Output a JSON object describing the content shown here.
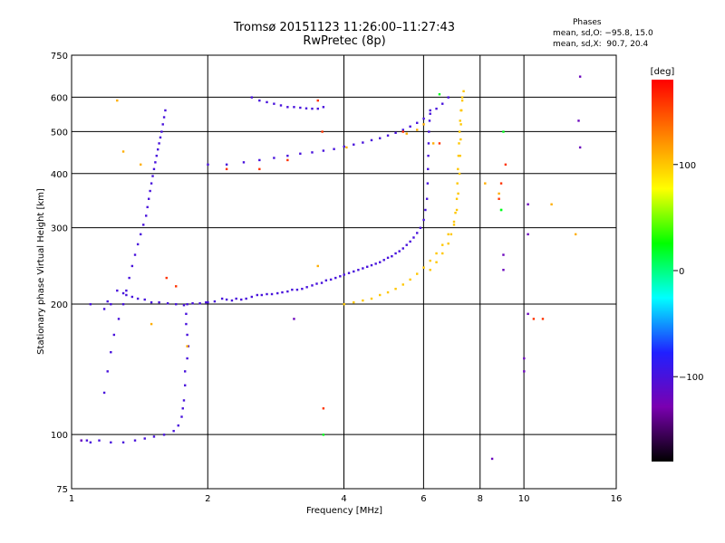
{
  "header": {
    "title": "Tromsø 20151123 11:26:00–11:27:43",
    "subtitle": "RwPretec (8p)"
  },
  "stats": {
    "heading": "Phases",
    "line_o": "mean, sd,O: −95.8, 15.0",
    "line_x": "mean, sd,X:  90.7, 20.4"
  },
  "colorbar": {
    "label": "[deg]",
    "range": [
      -180,
      180
    ],
    "ticks": [
      {
        "value": 100,
        "label": "100"
      },
      {
        "value": 0,
        "label": "0"
      },
      {
        "value": -100,
        "label": "−100"
      }
    ],
    "stops": [
      "#000000",
      "#7a00b0",
      "#2020ff",
      "#00ffff",
      "#00ff00",
      "#ffff00",
      "#ff8000",
      "#ff0000"
    ]
  },
  "chart_data": {
    "type": "scatter",
    "title": "Tromsø 20151123 11:26:00–11:27:43",
    "subtitle": "RwPretec (8p)",
    "xlabel": "Frequency [MHz]",
    "ylabel": "Stationary phase Virtual Height [km]",
    "x_scale": "log",
    "y_scale": "log",
    "xlim": [
      1,
      16
    ],
    "ylim": [
      75,
      750
    ],
    "xticks": [
      1,
      2,
      4,
      6,
      8,
      10,
      16
    ],
    "yticks": [
      75,
      100,
      200,
      300,
      400,
      500,
      600,
      750
    ],
    "grid": true,
    "color_value": "phase [deg]",
    "series": [
      {
        "color_deg": -100,
        "points": [
          [
            1.1,
            200
          ],
          [
            1.18,
            195
          ],
          [
            1.22,
            200
          ],
          [
            1.2,
            203
          ],
          [
            1.26,
            215
          ],
          [
            1.3,
            212
          ],
          [
            1.32,
            210
          ],
          [
            1.36,
            208
          ],
          [
            1.4,
            206
          ],
          [
            1.45,
            205
          ],
          [
            1.5,
            202
          ],
          [
            1.56,
            202
          ],
          [
            1.63,
            201
          ],
          [
            1.7,
            200
          ],
          [
            1.77,
            199
          ],
          [
            1.8,
            200
          ],
          [
            1.85,
            201
          ],
          [
            1.92,
            201
          ],
          [
            1.98,
            202
          ],
          [
            2.0,
            202
          ],
          [
            2.07,
            203
          ],
          [
            2.15,
            206
          ],
          [
            2.2,
            205
          ],
          [
            2.26,
            204
          ],
          [
            2.31,
            206
          ],
          [
            2.37,
            205
          ],
          [
            2.43,
            206
          ],
          [
            2.5,
            208
          ],
          [
            2.57,
            210
          ],
          [
            2.63,
            210
          ],
          [
            2.7,
            211
          ],
          [
            2.77,
            211
          ],
          [
            2.85,
            212
          ],
          [
            2.92,
            213
          ],
          [
            3.0,
            214
          ],
          [
            3.07,
            216
          ],
          [
            3.15,
            216
          ],
          [
            3.23,
            217
          ],
          [
            3.31,
            219
          ],
          [
            3.4,
            221
          ],
          [
            3.48,
            223
          ],
          [
            3.57,
            224
          ],
          [
            3.65,
            227
          ],
          [
            3.74,
            228
          ],
          [
            3.83,
            230
          ],
          [
            3.92,
            232
          ],
          [
            4.0,
            234
          ],
          [
            4.1,
            236
          ],
          [
            4.2,
            238
          ],
          [
            4.3,
            240
          ],
          [
            4.4,
            242
          ],
          [
            4.5,
            244
          ],
          [
            4.6,
            246
          ],
          [
            4.7,
            248
          ],
          [
            4.8,
            250
          ],
          [
            4.9,
            253
          ],
          [
            5.0,
            256
          ],
          [
            5.1,
            258
          ],
          [
            5.2,
            262
          ],
          [
            5.3,
            265
          ],
          [
            5.4,
            269
          ],
          [
            5.5,
            274
          ],
          [
            5.6,
            279
          ],
          [
            5.7,
            285
          ],
          [
            5.8,
            292
          ],
          [
            5.9,
            300
          ],
          [
            6.0,
            313
          ],
          [
            6.05,
            330
          ],
          [
            6.1,
            350
          ],
          [
            6.12,
            380
          ],
          [
            6.13,
            410
          ],
          [
            6.14,
            440
          ],
          [
            6.15,
            470
          ],
          [
            6.16,
            500
          ],
          [
            6.18,
            530
          ],
          [
            6.2,
            560
          ]
        ]
      },
      {
        "color_deg": -100,
        "points": [
          [
            1.05,
            97
          ],
          [
            1.08,
            97
          ],
          [
            1.1,
            96
          ],
          [
            1.15,
            97
          ],
          [
            1.22,
            96
          ],
          [
            1.3,
            96
          ],
          [
            1.38,
            97
          ],
          [
            1.45,
            98
          ],
          [
            1.52,
            99
          ],
          [
            1.6,
            100
          ],
          [
            1.68,
            102
          ],
          [
            1.72,
            105
          ],
          [
            1.75,
            110
          ],
          [
            1.76,
            115
          ],
          [
            1.77,
            120
          ],
          [
            1.78,
            130
          ],
          [
            1.78,
            140
          ],
          [
            1.8,
            150
          ],
          [
            1.81,
            160
          ],
          [
            1.8,
            170
          ],
          [
            1.79,
            180
          ],
          [
            1.79,
            190
          ]
        ]
      },
      {
        "color_deg": -100,
        "points": [
          [
            1.18,
            125
          ],
          [
            1.2,
            140
          ],
          [
            1.22,
            155
          ],
          [
            1.24,
            170
          ],
          [
            1.27,
            185
          ],
          [
            1.3,
            200
          ],
          [
            1.32,
            215
          ],
          [
            1.34,
            230
          ],
          [
            1.36,
            245
          ],
          [
            1.38,
            260
          ],
          [
            1.4,
            275
          ],
          [
            1.42,
            290
          ],
          [
            1.44,
            305
          ],
          [
            1.46,
            320
          ],
          [
            1.47,
            335
          ],
          [
            1.48,
            350
          ],
          [
            1.49,
            365
          ],
          [
            1.5,
            380
          ],
          [
            1.51,
            395
          ],
          [
            1.52,
            410
          ],
          [
            1.53,
            425
          ],
          [
            1.54,
            440
          ],
          [
            1.55,
            455
          ],
          [
            1.56,
            470
          ],
          [
            1.57,
            485
          ],
          [
            1.58,
            500
          ],
          [
            1.59,
            520
          ],
          [
            1.6,
            540
          ],
          [
            1.61,
            560
          ]
        ]
      },
      {
        "color_deg": -100,
        "points": [
          [
            2.5,
            600
          ],
          [
            2.6,
            590
          ],
          [
            2.7,
            585
          ],
          [
            2.8,
            580
          ],
          [
            2.9,
            575
          ],
          [
            3.0,
            570
          ],
          [
            3.1,
            570
          ],
          [
            3.2,
            568
          ],
          [
            3.3,
            566
          ],
          [
            3.4,
            565
          ],
          [
            3.5,
            565
          ],
          [
            3.6,
            570
          ]
        ]
      },
      {
        "color_deg": -100,
        "points": [
          [
            2.0,
            420
          ],
          [
            2.2,
            420
          ],
          [
            2.4,
            425
          ],
          [
            2.6,
            430
          ],
          [
            2.8,
            435
          ],
          [
            3.0,
            440
          ],
          [
            3.2,
            445
          ],
          [
            3.4,
            448
          ],
          [
            3.6,
            452
          ],
          [
            3.8,
            456
          ],
          [
            4.0,
            462
          ],
          [
            4.2,
            467
          ],
          [
            4.4,
            472
          ],
          [
            4.6,
            478
          ],
          [
            4.8,
            483
          ],
          [
            5.0,
            490
          ],
          [
            5.2,
            497
          ],
          [
            5.4,
            505
          ],
          [
            5.6,
            514
          ],
          [
            5.8,
            524
          ],
          [
            6.0,
            536
          ],
          [
            6.2,
            550
          ],
          [
            6.4,
            565
          ],
          [
            6.6,
            580
          ],
          [
            6.8,
            600
          ]
        ]
      },
      {
        "color_deg": 100,
        "points": [
          [
            4.0,
            200
          ],
          [
            4.2,
            202
          ],
          [
            4.4,
            204
          ],
          [
            4.6,
            206
          ],
          [
            4.8,
            210
          ],
          [
            5.0,
            213
          ],
          [
            5.2,
            217
          ],
          [
            5.4,
            222
          ],
          [
            5.6,
            228
          ],
          [
            5.8,
            235
          ],
          [
            6.0,
            243
          ],
          [
            6.2,
            252
          ],
          [
            6.4,
            262
          ],
          [
            6.6,
            274
          ],
          [
            6.8,
            290
          ],
          [
            7.0,
            310
          ],
          [
            7.1,
            330
          ],
          [
            7.15,
            360
          ],
          [
            7.2,
            400
          ],
          [
            7.22,
            440
          ],
          [
            7.24,
            480
          ],
          [
            7.25,
            520
          ],
          [
            7.27,
            560
          ],
          [
            7.3,
            600
          ]
        ]
      },
      {
        "color_deg": 100,
        "points": [
          [
            6.2,
            240
          ],
          [
            6.4,
            250
          ],
          [
            6.6,
            262
          ],
          [
            6.8,
            276
          ],
          [
            6.9,
            290
          ],
          [
            7.0,
            305
          ],
          [
            7.05,
            325
          ],
          [
            7.1,
            350
          ],
          [
            7.12,
            380
          ],
          [
            7.14,
            410
          ],
          [
            7.16,
            440
          ],
          [
            7.18,
            470
          ],
          [
            7.2,
            500
          ],
          [
            7.22,
            530
          ],
          [
            7.25,
            560
          ],
          [
            7.3,
            590
          ],
          [
            7.35,
            620
          ]
        ]
      },
      {
        "color_deg": 110,
        "points": [
          [
            1.26,
            590
          ],
          [
            1.3,
            450
          ],
          [
            1.42,
            420
          ],
          [
            1.5,
            180
          ],
          [
            1.8,
            160
          ],
          [
            3.5,
            245
          ],
          [
            4.05,
            460
          ],
          [
            5.5,
            495
          ],
          [
            5.8,
            505
          ],
          [
            6.0,
            520
          ],
          [
            6.3,
            470
          ],
          [
            8.2,
            380
          ],
          [
            8.8,
            360
          ],
          [
            11.5,
            340
          ],
          [
            13.0,
            290
          ]
        ]
      },
      {
        "color_deg": 160,
        "points": [
          [
            1.62,
            230
          ],
          [
            1.7,
            220
          ],
          [
            2.2,
            410
          ],
          [
            2.6,
            410
          ],
          [
            3.0,
            430
          ],
          [
            3.5,
            590
          ],
          [
            3.58,
            500
          ],
          [
            3.6,
            115
          ],
          [
            5.4,
            500
          ],
          [
            6.5,
            470
          ],
          [
            8.8,
            350
          ],
          [
            8.9,
            380
          ],
          [
            9.1,
            420
          ],
          [
            10.5,
            185
          ],
          [
            11.0,
            185
          ]
        ]
      },
      {
        "color_deg": 20,
        "points": [
          [
            3.6,
            100
          ],
          [
            6.5,
            610
          ],
          [
            8.9,
            330
          ],
          [
            8.9,
            330
          ],
          [
            9.0,
            500
          ]
        ]
      },
      {
        "color_deg": -120,
        "points": [
          [
            1.05,
            97
          ],
          [
            8.5,
            88
          ],
          [
            9.0,
            260
          ],
          [
            9.0,
            240
          ],
          [
            10.2,
            340
          ],
          [
            10.2,
            290
          ],
          [
            10.2,
            190
          ],
          [
            10.0,
            150
          ],
          [
            10.0,
            140
          ],
          [
            13.3,
            670
          ],
          [
            13.2,
            530
          ],
          [
            13.3,
            460
          ],
          [
            3.1,
            185
          ]
        ]
      }
    ]
  }
}
